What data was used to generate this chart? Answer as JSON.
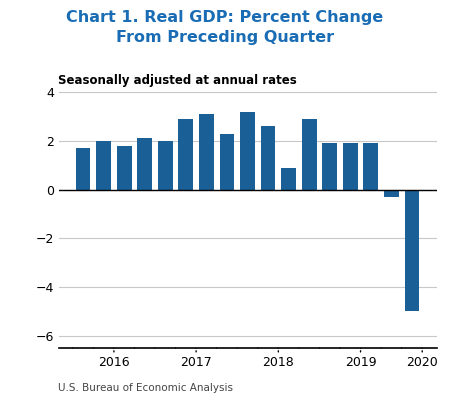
{
  "title_line1": "Chart 1. Real GDP: Percent Change",
  "title_line2": "From Preceding Quarter",
  "subtitle": "Seasonally adjusted at annual rates",
  "footer": "U.S. Bureau of Economic Analysis",
  "bar_color": "#1a5f96",
  "values": [
    1.7,
    2.0,
    1.8,
    2.1,
    2.0,
    2.9,
    3.1,
    2.3,
    3.2,
    2.6,
    0.9,
    2.9,
    1.9,
    1.9,
    1.9,
    -0.3,
    -5.0
  ],
  "ylim_min": -6.5,
  "ylim_max": 4.5,
  "yticks": [
    -6,
    -4,
    -2,
    0,
    2,
    4
  ],
  "background_color": "#ffffff",
  "grid_color": "#c8c8c8",
  "year_labels": [
    "2016",
    "2017",
    "2018",
    "2019",
    "2020"
  ],
  "year_tick_x": [
    1.5,
    5.5,
    9.5,
    13.5,
    16.5
  ],
  "title_color": "#1a6db5",
  "title_fontsize": 11.5,
  "subtitle_fontsize": 8.5,
  "footer_fontsize": 7.5,
  "tick_label_fontsize": 9
}
